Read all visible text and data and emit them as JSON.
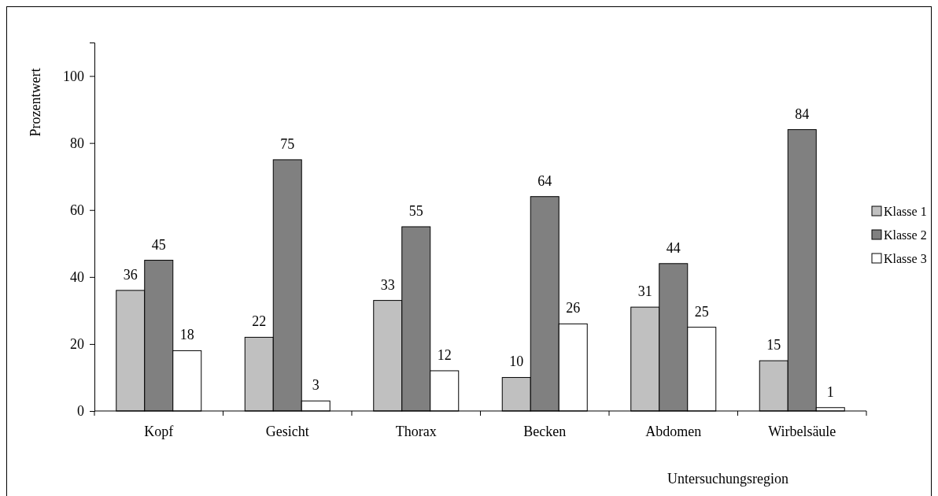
{
  "chart_data": {
    "type": "bar",
    "xlabel": "Untersuchungsregion",
    "ylabel": "Prozentwert",
    "categories": [
      "Kopf",
      "Gesicht",
      "Thorax",
      "Becken",
      "Abdomen",
      "Wirbelsäule"
    ],
    "series": [
      {
        "name": "Klasse 1",
        "color": "#c0c0c0",
        "values": [
          36,
          22,
          33,
          10,
          31,
          15
        ]
      },
      {
        "name": "Klasse 2",
        "color": "#808080",
        "values": [
          45,
          75,
          55,
          64,
          44,
          84
        ]
      },
      {
        "name": "Klasse 3",
        "color": "#ffffff",
        "values": [
          18,
          3,
          12,
          26,
          25,
          1
        ]
      }
    ],
    "ylim": [
      0,
      110
    ],
    "yticks": [
      0,
      20,
      40,
      60,
      80,
      100
    ],
    "grid": false,
    "legend": "right",
    "data_labels": true
  }
}
